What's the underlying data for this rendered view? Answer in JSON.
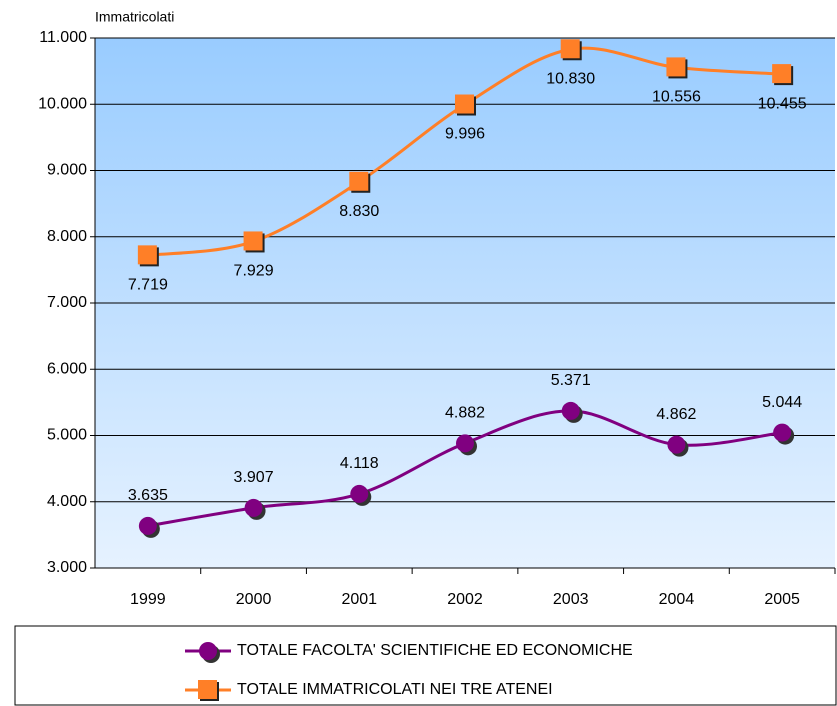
{
  "chart_data": {
    "type": "line",
    "y_label": "Immatricolati",
    "categories": [
      "1999",
      "2000",
      "2001",
      "2002",
      "2003",
      "2004",
      "2005"
    ],
    "series": [
      {
        "name": "TOTALE FACOLTA' SCIENTIFICHE ED ECONOMICHE",
        "color": "#800080",
        "marker": "circle",
        "values": [
          3635,
          3907,
          4118,
          4882,
          5371,
          4862,
          5044
        ],
        "value_labels": [
          "3.635",
          "3.907",
          "4.118",
          "4.882",
          "5.371",
          "4.862",
          "5.044"
        ]
      },
      {
        "name": "TOTALE IMMATRICOLATI NEI TRE ATENEI",
        "color": "#ff7f27",
        "marker": "square",
        "values": [
          7719,
          7929,
          8830,
          9996,
          10830,
          10556,
          10455
        ],
        "value_labels": [
          "7.719",
          "7.929",
          "8.830",
          "9.996",
          "10.830",
          "10.556",
          "10.455"
        ]
      }
    ],
    "ylim": [
      3000,
      11000
    ],
    "yticks": [
      {
        "value": 3000,
        "label": "3.000"
      },
      {
        "value": 4000,
        "label": "4.000"
      },
      {
        "value": 5000,
        "label": "5.000"
      },
      {
        "value": 6000,
        "label": "6.000"
      },
      {
        "value": 7000,
        "label": "7.000"
      },
      {
        "value": 8000,
        "label": "8.000"
      },
      {
        "value": 9000,
        "label": "9.000"
      },
      {
        "value": 10000,
        "label": "10.000"
      },
      {
        "value": 11000,
        "label": "11.000"
      }
    ],
    "grid": true
  }
}
